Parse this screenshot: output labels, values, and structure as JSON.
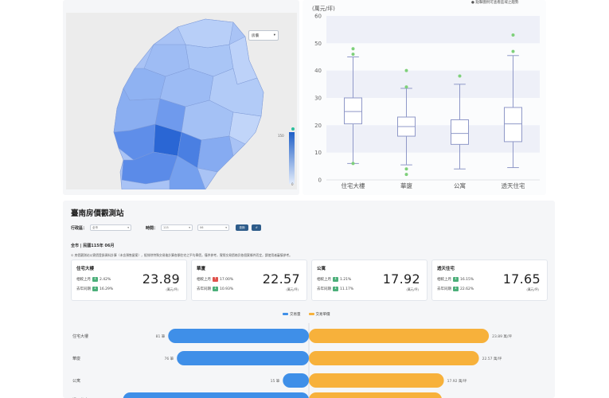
{
  "map": {
    "dropdown_label": "房價",
    "legend_max": "150",
    "legend_min": "0",
    "hint": "(萬元/坪)"
  },
  "boxplot": {
    "unit": "(萬元/坪)",
    "note": "● 點擊圖例可查看區域之趨勢",
    "y_ticks": [
      "0",
      "10",
      "20",
      "30",
      "40",
      "50",
      "60"
    ]
  },
  "dashboard": {
    "title": "臺南房價觀測站",
    "filter_district_label": "行政區：",
    "filter_district_value": "全市",
    "filter_time_label": "時間：",
    "filter_year_value": "115",
    "filter_month_value": "06",
    "btn_query": "查詢",
    "btn_reset": "↺",
    "period": "全市 | 民國115年 06月",
    "notice": "① 房價觀測站以實價登錄資料計算（未含預售屋案），經排除特殊交易後計算各類住宅之平均單價，僅供參考，實際交易價格仍依個案條件而定，請使用者審慎參考。",
    "legend_count": "交易量",
    "legend_price": "交易單價"
  },
  "cards": [
    {
      "title": "住宅大樓",
      "mom_label": "相較上月",
      "mom_dir": "down",
      "mom_val": "2.42%",
      "yoy_label": "去年同期",
      "yoy_dir": "down",
      "yoy_val": "16.29%",
      "value": "23.89",
      "unit": "(萬元/坪)"
    },
    {
      "title": "華廈",
      "mom_label": "相較上月",
      "mom_dir": "up",
      "mom_val": "17.00%",
      "yoy_label": "去年同期",
      "yoy_dir": "down",
      "yoy_val": "10.93%",
      "value": "22.57",
      "unit": "(萬元/坪)"
    },
    {
      "title": "公寓",
      "mom_label": "相較上月",
      "mom_dir": "down",
      "mom_val": "1.21%",
      "yoy_label": "去年同期",
      "yoy_dir": "down",
      "yoy_val": "11.17%",
      "value": "17.92",
      "unit": "(萬元/坪)"
    },
    {
      "title": "透天住宅",
      "mom_label": "相較上月",
      "mom_dir": "down",
      "mom_val": "16.15%",
      "yoy_label": "去年同期",
      "yoy_dir": "down",
      "yoy_val": "22.62%",
      "value": "17.65",
      "unit": "(萬元/坪)"
    }
  ],
  "chart_data": [
    {
      "type": "box",
      "title": "",
      "xlabel": "",
      "ylabel": "(萬元/坪)",
      "ylim": [
        0,
        60
      ],
      "categories": [
        "住宅大樓",
        "華廈",
        "公寓",
        "透天住宅"
      ],
      "boxes": [
        {
          "min": 6,
          "q1": 20.5,
          "median": 25,
          "q3": 30,
          "max": 45,
          "outliers": [
            6,
            46,
            48
          ]
        },
        {
          "min": 5.5,
          "q1": 16,
          "median": 19.5,
          "q3": 23,
          "max": 33.5,
          "outliers": [
            2,
            4,
            34,
            40
          ]
        },
        {
          "min": 4,
          "q1": 13,
          "median": 17,
          "q3": 22,
          "max": 35,
          "outliers": [
            38
          ]
        },
        {
          "min": 4.5,
          "q1": 14,
          "median": 20.5,
          "q3": 26.5,
          "max": 45.5,
          "outliers": [
            47,
            53
          ]
        }
      ],
      "color": "#8f98c8",
      "outlier_color": "#7ed07a",
      "band_color": "#eef0f8"
    },
    {
      "type": "bar",
      "title": "",
      "categories": [
        "住宅大樓",
        "華廈",
        "公寓",
        "透天住宅"
      ],
      "series": [
        {
          "name": "交易量",
          "values": [
            81,
            76,
            15,
            107
          ],
          "labels": [
            "81 筆",
            "76 筆",
            "15 筆",
            ""
          ],
          "color": "#3f8fe8"
        },
        {
          "name": "交易單價",
          "values": [
            23.89,
            22.57,
            17.92,
            17.65
          ],
          "labels": [
            "23.89 萬/坪",
            "22.57 萬/坪",
            "17.92 萬/坪",
            ""
          ],
          "color": "#f7b13b"
        }
      ],
      "count_max": 110,
      "price_max": 28
    }
  ]
}
